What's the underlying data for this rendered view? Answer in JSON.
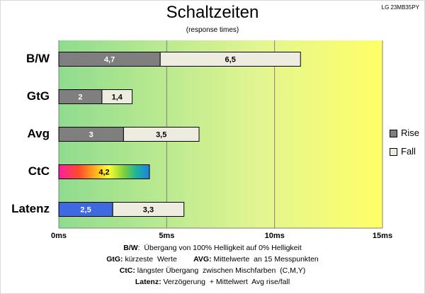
{
  "model": "LG 23MB35PY",
  "chart_data": {
    "type": "bar",
    "orientation": "horizontal",
    "stacked": true,
    "title": "Schaltzeiten",
    "subtitle": "(response times)",
    "categories": [
      "B/W",
      "GtG",
      "Avg",
      "CtC",
      "Latenz"
    ],
    "series": [
      {
        "name": "Rise",
        "values": [
          4.7,
          2,
          3,
          4.2,
          2.5
        ],
        "labels": [
          "4,7",
          "2",
          "3",
          "4,2",
          "2,5"
        ],
        "color": "#7f7f7f"
      },
      {
        "name": "Fall",
        "values": [
          6.5,
          1.4,
          3.5,
          null,
          3.3
        ],
        "labels": [
          "6,5",
          "1,4",
          "3,5",
          "",
          "3,3"
        ],
        "color": "#eeece1"
      }
    ],
    "special_fills": {
      "CtC": "rainbow-gradient",
      "Latenz": "#3e6ae1"
    },
    "xlim": [
      0,
      15
    ],
    "xticks": [
      "0ms",
      "5ms",
      "10ms",
      "15ms"
    ],
    "xtick_values": [
      0,
      5,
      10,
      15
    ],
    "background": {
      "from": "#8fdc8f",
      "to": "#ffff66",
      "description": "green to yellow gradient"
    },
    "legend": "right"
  },
  "notes": [
    [
      {
        "k": "B/W",
        "t": ":  Übergang von 100% Helligkeit auf 0% Helligkeit"
      }
    ],
    [
      {
        "k": "GtG:",
        "t": " kürzeste  Werte        "
      },
      {
        "k": "AVG:",
        "t": " Mittelwerte  an 15 Messpunkten"
      }
    ],
    [
      {
        "k": "CtC:",
        "t": " längster Übergang  zwischen Mischfarben  (C,M,Y)"
      }
    ],
    [
      {
        "k": "Latenz:",
        "t": " Verzögerung  + Mittelwert  Avg rise/fall"
      }
    ]
  ]
}
